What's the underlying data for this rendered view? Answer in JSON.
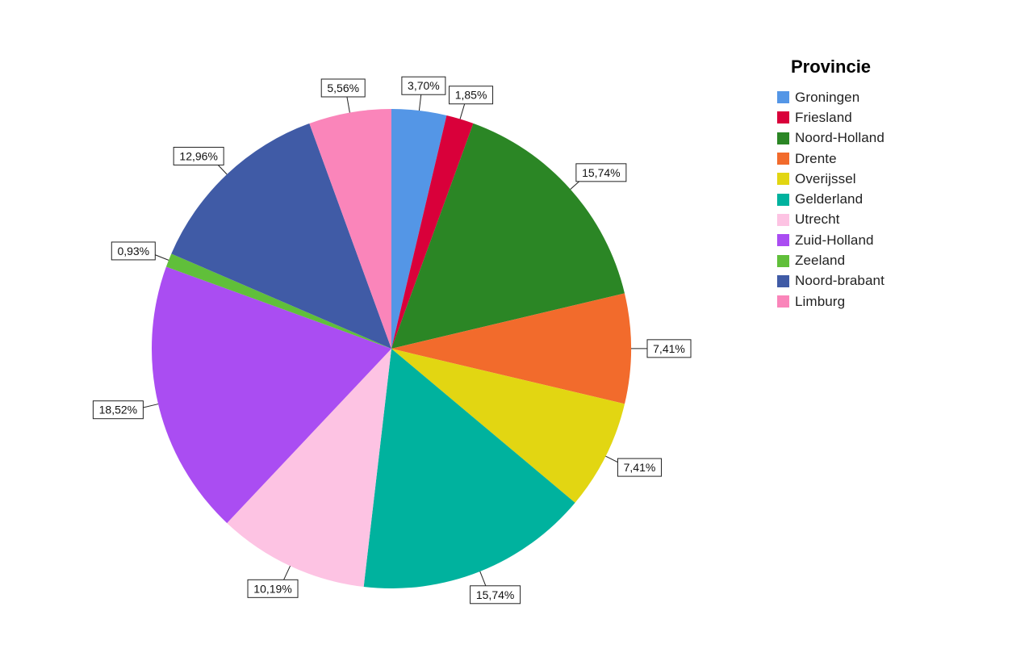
{
  "chart_data": {
    "type": "pie",
    "legend_title": "Provincie",
    "legend_position": "right",
    "slices": [
      {
        "name": "Groningen",
        "value": 3.7,
        "label": "3,70%",
        "color": "#5496e6"
      },
      {
        "name": "Friesland",
        "value": 1.85,
        "label": "1,85%",
        "color": "#d9003a"
      },
      {
        "name": "Noord-Holland",
        "value": 15.74,
        "label": "15,74%",
        "color": "#2b8625"
      },
      {
        "name": "Drente",
        "value": 7.41,
        "label": "7,41%",
        "color": "#f26b2c"
      },
      {
        "name": "Overijssel",
        "value": 7.41,
        "label": "7,41%",
        "color": "#e2d612"
      },
      {
        "name": "Gelderland",
        "value": 15.74,
        "label": "15,74%",
        "color": "#00b29e"
      },
      {
        "name": "Utrecht",
        "value": 10.19,
        "label": "10,19%",
        "color": "#fdc3e3"
      },
      {
        "name": "Zuid-Holland",
        "value": 18.52,
        "label": "18,52%",
        "color": "#aa4df2"
      },
      {
        "name": "Zeeland",
        "value": 0.93,
        "label": "0,93%",
        "color": "#60bf3a"
      },
      {
        "name": "Noord-brabant",
        "value": 12.96,
        "label": "12,96%",
        "color": "#405ba6"
      },
      {
        "name": "Limburg",
        "value": 5.56,
        "label": "5,56%",
        "color": "#fa85ba"
      }
    ]
  }
}
